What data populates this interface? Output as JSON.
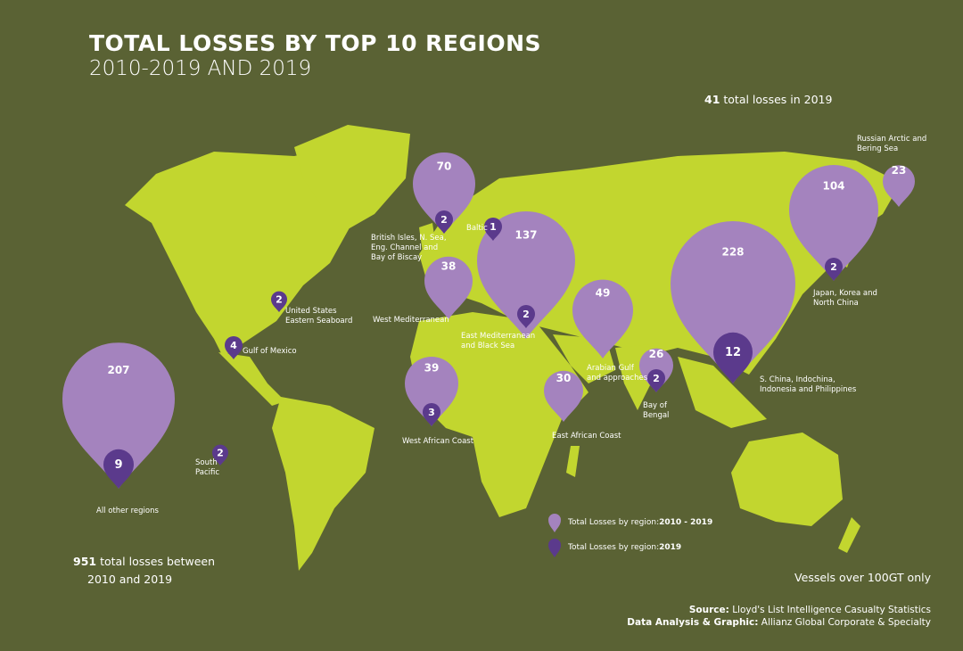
{
  "header": {
    "title": "TOTAL LOSSES BY TOP 10 REGIONS",
    "subtitle": "2010-2019 AND 2019"
  },
  "totals": {
    "y2019_number": "41",
    "y2019_text": " total losses in 2019",
    "decade_number": "951",
    "decade_text_1": " total losses between",
    "decade_text_2": "2010 and 2019"
  },
  "note": "Vessels over 100GT only",
  "legend": {
    "item1_text": "Total Losses by region: ",
    "item1_bold": "2010 - 2019",
    "item2_text": "Total Losses by region: ",
    "item2_bold": "2019"
  },
  "credits": {
    "source_label": "Source:",
    "source_value": " Lloyd's List Intelligence Casualty Statistics",
    "analysis_label": "Data Analysis & Graphic:",
    "analysis_value": " Allianz Global Corporate & Specialty"
  },
  "colors": {
    "background": "#5a6234",
    "land": "#c2d62f",
    "pin_2010_2019": "#a483be",
    "pin_2019": "#5b3a8c"
  },
  "chart_data": {
    "type": "map-pins",
    "series": [
      {
        "name": "Total Losses by region: 2010 - 2019"
      },
      {
        "name": "Total Losses by region: 2019"
      }
    ],
    "regions": [
      {
        "name": "All other regions",
        "total_2010_2019": "207",
        "total_2019": "9"
      },
      {
        "name": "British Isles, N. Sea, Eng. Channel and Bay of Biscay",
        "total_2010_2019": "70",
        "total_2019": "2"
      },
      {
        "name": "Baltic",
        "total_2019": "1"
      },
      {
        "name": "East Mediterranean and Black Sea",
        "total_2010_2019": "137",
        "total_2019": "2"
      },
      {
        "name": "West Mediterranean",
        "total_2010_2019": "38"
      },
      {
        "name": "Arabian Gulf and approaches",
        "total_2010_2019": "49"
      },
      {
        "name": "West African Coast",
        "total_2010_2019": "39",
        "total_2019": "3"
      },
      {
        "name": "East African Coast",
        "total_2010_2019": "30"
      },
      {
        "name": "Bay of Bengal",
        "total_2010_2019": "26",
        "total_2019": "2"
      },
      {
        "name": "S. China, Indochina, Indonesia and Philippines",
        "total_2010_2019": "228",
        "total_2019": "12"
      },
      {
        "name": "Japan, Korea and North China",
        "total_2010_2019": "104",
        "total_2019": "2"
      },
      {
        "name": "Russian Arctic and Bering Sea",
        "total_2010_2019": "23"
      },
      {
        "name": "Gulf of Mexico",
        "total_2019": "4"
      },
      {
        "name": "United States Eastern Seaboard",
        "total_2019": "2"
      },
      {
        "name": "South Pacific",
        "total_2019": "2"
      }
    ],
    "labels": {
      "all_other": "All other regions",
      "british": [
        "British Isles, N. Sea,",
        "Eng. Channel and",
        "Bay of Biscay"
      ],
      "baltic": "Baltic",
      "east_med": [
        "East Mediterranean",
        "and Black Sea"
      ],
      "west_med": "West Mediterranean",
      "arabian": [
        "Arabian Gulf",
        "and approaches"
      ],
      "west_africa": "West African Coast",
      "east_africa": "East African Coast",
      "bengal": [
        "Bay of",
        "Bengal"
      ],
      "s_china": [
        "S. China, Indochina,",
        "Indonesia and Philippines"
      ],
      "japan": [
        "Japan, Korea and",
        "North China"
      ],
      "russia": [
        "Russian Arctic and",
        "Bering Sea"
      ],
      "gulf_mexico": "Gulf of Mexico",
      "us_east": [
        "United States",
        "Eastern Seaboard"
      ],
      "south_pacific": [
        "South",
        "Pacific"
      ]
    }
  }
}
